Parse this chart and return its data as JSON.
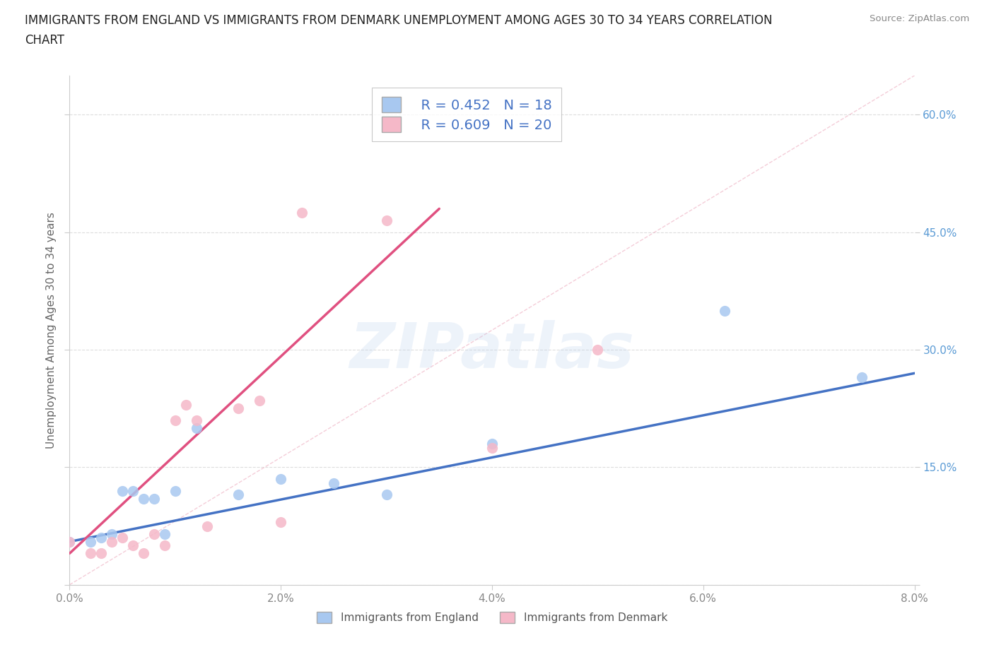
{
  "title_line1": "IMMIGRANTS FROM ENGLAND VS IMMIGRANTS FROM DENMARK UNEMPLOYMENT AMONG AGES 30 TO 34 YEARS CORRELATION",
  "title_line2": "CHART",
  "source": "Source: ZipAtlas.com",
  "ylabel": "Unemployment Among Ages 30 to 34 years",
  "xlim": [
    0.0,
    0.08
  ],
  "ylim": [
    0.0,
    0.65
  ],
  "x_ticks": [
    0.0,
    0.02,
    0.04,
    0.06,
    0.08
  ],
  "x_tick_labels": [
    "0.0%",
    "2.0%",
    "4.0%",
    "6.0%",
    "8.0%"
  ],
  "y_ticks": [
    0.0,
    0.15,
    0.3,
    0.45,
    0.6
  ],
  "y_tick_labels": [
    "",
    "15.0%",
    "30.0%",
    "45.0%",
    "60.0%"
  ],
  "grid_color": "#dddddd",
  "background_color": "#ffffff",
  "watermark_text": "ZIPatlas",
  "england_scatter_color": "#a8c8f0",
  "denmark_scatter_color": "#f5b8c8",
  "england_line_color": "#4472c4",
  "denmark_line_color": "#e05080",
  "diagonal_color": "#f0b8c8",
  "england_R": 0.452,
  "england_N": 18,
  "denmark_R": 0.609,
  "denmark_N": 20,
  "legend_label_color": "#4472c4",
  "tick_color_y": "#5b9bd5",
  "tick_color_x": "#888888",
  "ylabel_color": "#666666",
  "spine_color": "#cccccc",
  "england_points_x": [
    0.0,
    0.002,
    0.003,
    0.004,
    0.005,
    0.006,
    0.007,
    0.008,
    0.009,
    0.01,
    0.012,
    0.016,
    0.02,
    0.025,
    0.03,
    0.04,
    0.062,
    0.075
  ],
  "england_points_y": [
    0.055,
    0.055,
    0.06,
    0.065,
    0.12,
    0.12,
    0.11,
    0.11,
    0.065,
    0.12,
    0.2,
    0.115,
    0.135,
    0.13,
    0.115,
    0.18,
    0.35,
    0.265
  ],
  "denmark_points_x": [
    0.0,
    0.002,
    0.003,
    0.004,
    0.005,
    0.006,
    0.007,
    0.008,
    0.009,
    0.01,
    0.011,
    0.012,
    0.013,
    0.016,
    0.018,
    0.02,
    0.022,
    0.03,
    0.04,
    0.05
  ],
  "denmark_points_y": [
    0.055,
    0.04,
    0.04,
    0.055,
    0.06,
    0.05,
    0.04,
    0.065,
    0.05,
    0.21,
    0.23,
    0.21,
    0.075,
    0.225,
    0.235,
    0.08,
    0.475,
    0.465,
    0.175,
    0.3
  ],
  "den_line_x0": 0.0,
  "den_line_x1": 0.035,
  "den_line_y0": 0.04,
  "den_line_y1": 0.48,
  "eng_line_x0": 0.0,
  "eng_line_x1": 0.08,
  "eng_line_y0": 0.055,
  "eng_line_y1": 0.27
}
